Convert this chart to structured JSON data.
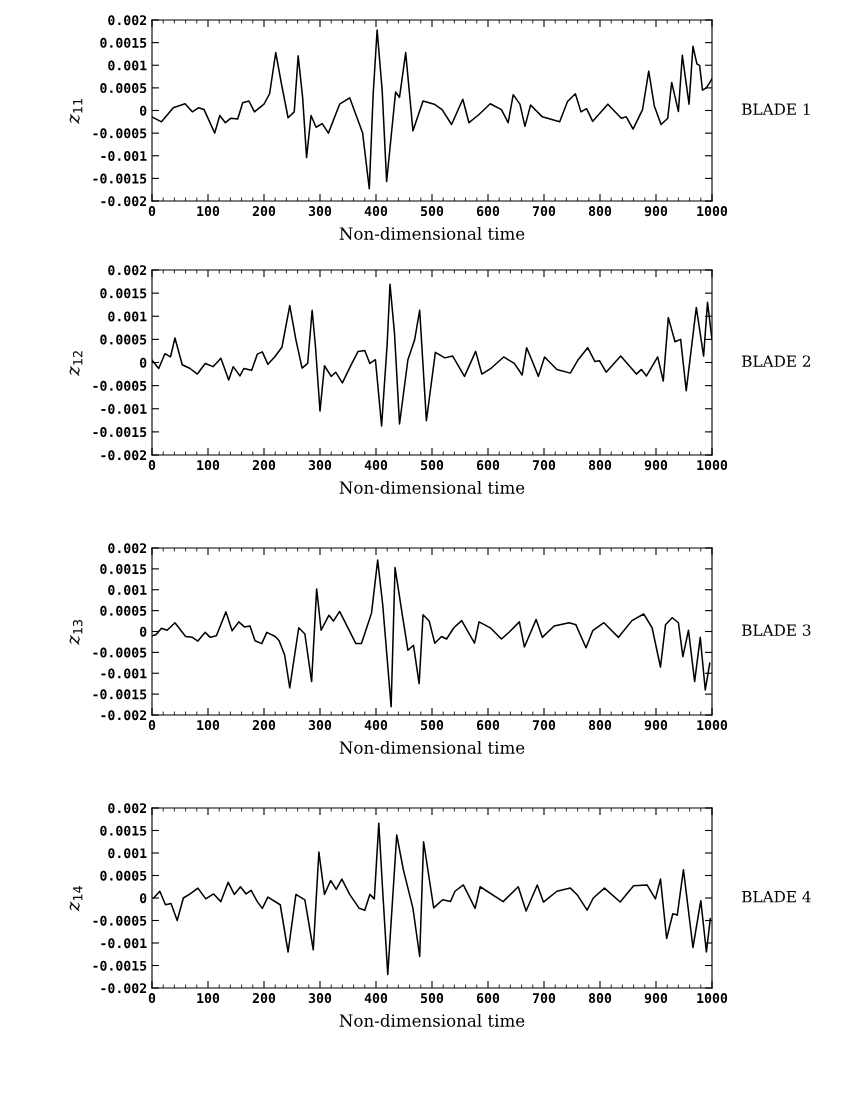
{
  "chart_data": [
    {
      "type": "line",
      "ylabel": "z$_{11}$",
      "xlabel": "Non-dimensional time",
      "annotations": [
        "BLADE 1"
      ],
      "xlim": [
        0,
        1000
      ],
      "ylim": [
        -0.002,
        0.002
      ],
      "xticks": [
        0,
        100,
        200,
        300,
        400,
        500,
        600,
        700,
        800,
        900,
        1000
      ],
      "yticks": [
        -0.002,
        -0.0015,
        -0.001,
        -0.0005,
        0,
        0.0005,
        0.001,
        0.0015,
        0.002
      ],
      "grid": false,
      "marker": "none",
      "line_style": "solid",
      "series": [
        {
          "color": "#000000",
          "x": [
            0,
            17,
            38,
            59,
            72,
            83,
            93,
            112,
            121,
            131,
            141,
            153,
            162,
            173,
            183,
            200,
            210,
            221,
            231,
            243,
            254,
            261,
            269,
            276,
            284,
            293,
            304,
            315,
            335,
            353,
            376,
            388,
            395,
            402,
            411,
            419,
            435,
            442,
            453,
            466,
            484,
            504,
            518,
            535,
            555,
            566,
            583,
            604,
            624,
            636,
            645,
            657,
            666,
            676,
            697,
            728,
            742,
            756,
            766,
            776,
            787,
            814,
            838,
            847,
            859,
            876,
            887,
            897,
            909,
            921,
            928,
            940,
            947,
            959,
            966,
            973,
            978,
            983,
            990,
            1000
          ],
          "values": [
            -0.00014,
            -0.00025,
            6e-05,
            0.00015,
            -3e-05,
            6e-05,
            2e-05,
            -0.0005,
            -0.00011,
            -0.00027,
            -0.00017,
            -0.00019,
            0.00017,
            0.00021,
            -3e-05,
            0.00014,
            0.00037,
            0.00128,
            0.0006,
            -0.00016,
            -3e-05,
            0.00121,
            0.00029,
            -0.00104,
            -0.00011,
            -0.00037,
            -0.00029,
            -0.0005,
            0.00014,
            0.00028,
            -0.00049,
            -0.00173,
            0.00037,
            0.00178,
            0.00045,
            -0.00157,
            0.00041,
            0.00029,
            0.00128,
            -0.00045,
            0.00021,
            0.00014,
            2e-05,
            -0.00031,
            0.00025,
            -0.00027,
            -0.0001,
            0.00015,
            2e-05,
            -0.00027,
            0.00035,
            0.00014,
            -0.00035,
            0.00012,
            -0.00014,
            -0.00025,
            0.0002,
            0.00037,
            -3e-05,
            4e-05,
            -0.00024,
            0.00014,
            -0.00017,
            -0.00014,
            -0.00041,
            2e-05,
            0.00087,
            0.0001,
            -0.00031,
            -0.00017,
            0.00062,
            -2e-05,
            0.00122,
            0.00014,
            0.00142,
            0.00103,
            0.00099,
            0.00045,
            0.0005,
            0.0007
          ]
        }
      ]
    },
    {
      "type": "line",
      "ylabel": "z$_{12}$",
      "xlabel": "Non-dimensional time",
      "annotations": [
        "BLADE 2"
      ],
      "xlim": [
        0,
        1000
      ],
      "ylim": [
        -0.002,
        0.002
      ],
      "xticks": [
        0,
        100,
        200,
        300,
        400,
        500,
        600,
        700,
        800,
        900,
        1000
      ],
      "yticks": [
        -0.002,
        -0.0015,
        -0.001,
        -0.0005,
        0,
        0.0005,
        0.001,
        0.0015,
        0.002
      ],
      "grid": false,
      "marker": "none",
      "line_style": "solid",
      "series": [
        {
          "color": "#000000",
          "x": [
            0,
            12,
            23,
            33,
            41,
            54,
            68,
            81,
            95,
            109,
            123,
            137,
            145,
            157,
            164,
            178,
            188,
            197,
            207,
            219,
            232,
            246,
            257,
            268,
            278,
            286,
            292,
            300,
            308,
            320,
            328,
            340,
            354,
            368,
            380,
            389,
            399,
            410,
            420,
            425,
            433,
            442,
            457,
            469,
            478,
            490,
            506,
            523,
            537,
            558,
            578,
            589,
            606,
            628,
            647,
            661,
            669,
            678,
            690,
            701,
            723,
            747,
            761,
            778,
            791,
            799,
            811,
            837,
            865,
            874,
            883,
            903,
            913,
            922,
            934,
            944,
            954,
            972,
            985,
            992,
            1000
          ],
          "values": [
            5e-05,
            -0.00013,
            0.00019,
            0.00012,
            0.00053,
            -5e-05,
            -0.00013,
            -0.00025,
            -2e-05,
            -9e-05,
            9e-05,
            -0.00038,
            -9e-05,
            -0.00029,
            -0.00013,
            -0.00017,
            0.00018,
            0.00023,
            -4e-05,
            0.00012,
            0.00033,
            0.00123,
            0.00049,
            -0.00012,
            -2e-05,
            0.00113,
            0.00033,
            -0.00105,
            -7e-05,
            -0.0003,
            -0.00021,
            -0.00044,
            -9e-05,
            0.00024,
            0.00026,
            -2e-05,
            6e-05,
            -0.00137,
            0.00041,
            0.00169,
            0.00064,
            -0.00133,
            6e-05,
            0.00049,
            0.00113,
            -0.00126,
            0.00022,
            0.0001,
            0.00014,
            -0.0003,
            0.00024,
            -0.00025,
            -0.00012,
            0.00012,
            -2e-05,
            -0.00027,
            0.00032,
            6e-05,
            -0.0003,
            0.00012,
            -0.00015,
            -0.00023,
            6e-05,
            0.00032,
            2e-05,
            4e-05,
            -0.00021,
            0.00014,
            -0.00025,
            -0.00015,
            -0.00029,
            0.00012,
            -0.0004,
            0.00097,
            0.00045,
            0.0005,
            -0.00061,
            0.00119,
            0.00014,
            0.0013,
            0.0005
          ]
        }
      ]
    },
    {
      "type": "line",
      "ylabel": "z$_{13}$",
      "xlabel": "Non-dimensional time",
      "annotations": [
        "BLADE 3"
      ],
      "xlim": [
        0,
        1000
      ],
      "ylim": [
        -0.002,
        0.002
      ],
      "xticks": [
        0,
        100,
        200,
        300,
        400,
        500,
        600,
        700,
        800,
        900,
        1000
      ],
      "yticks": [
        -0.002,
        -0.0015,
        -0.001,
        -0.0005,
        0,
        0.0005,
        0.001,
        0.0015,
        0.002
      ],
      "grid": false,
      "marker": "none",
      "line_style": "solid",
      "series": [
        {
          "color": "#000000",
          "x": [
            0,
            7,
            17,
            27,
            41,
            60,
            72,
            82,
            95,
            104,
            115,
            132,
            143,
            155,
            165,
            175,
            184,
            196,
            205,
            220,
            227,
            237,
            246,
            262,
            273,
            285,
            294,
            302,
            316,
            324,
            335,
            354,
            364,
            374,
            392,
            403,
            412,
            427,
            434,
            447,
            457,
            467,
            477,
            484,
            495,
            505,
            517,
            526,
            539,
            553,
            576,
            584,
            605,
            624,
            639,
            656,
            665,
            686,
            697,
            718,
            745,
            757,
            775,
            787,
            807,
            833,
            857,
            878,
            893,
            908,
            917,
            929,
            940,
            948,
            958,
            969,
            979,
            988,
            996
          ],
          "values": [
            -0.0001,
            -8e-05,
            8e-05,
            3e-05,
            0.00021,
            -0.00012,
            -0.00014,
            -0.00023,
            -2e-05,
            -0.00014,
            -0.0001,
            0.00047,
            2e-05,
            0.00023,
            0.00011,
            0.00013,
            -0.00022,
            -0.00029,
            -2e-05,
            -0.00012,
            -0.00022,
            -0.00057,
            -0.00135,
            9e-05,
            -6e-05,
            -0.0012,
            0.00102,
            3e-05,
            0.00039,
            0.00025,
            0.00048,
            -2e-05,
            -0.00029,
            -0.00029,
            0.00044,
            0.00171,
            0.00064,
            -0.0018,
            0.00153,
            0.0004,
            -0.00045,
            -0.00033,
            -0.00125,
            0.0004,
            0.00025,
            -0.00028,
            -0.00012,
            -0.00018,
            9e-05,
            0.00026,
            -0.00028,
            0.00023,
            8e-05,
            -0.00018,
            0,
            0.00023,
            -0.00037,
            0.00029,
            -0.00014,
            0.00013,
            0.00021,
            0.00016,
            -0.00039,
            2e-05,
            0.00021,
            -0.00014,
            0.00026,
            0.00042,
            9e-05,
            -0.00085,
            0.00016,
            0.00033,
            0.00021,
            -0.0006,
            3e-05,
            -0.0012,
            -0.00014,
            -0.0014,
            -0.00076
          ]
        }
      ]
    },
    {
      "type": "line",
      "ylabel": "z$_{14}$",
      "xlabel": "Non-dimensional time",
      "annotations": [
        "BLADE 4"
      ],
      "xlim": [
        0,
        1000
      ],
      "ylim": [
        -0.002,
        0.002
      ],
      "xticks": [
        0,
        100,
        200,
        300,
        400,
        500,
        600,
        700,
        800,
        900,
        1000
      ],
      "yticks": [
        -0.002,
        -0.0015,
        -0.001,
        -0.0005,
        0,
        0.0005,
        0.001,
        0.0015,
        0.002
      ],
      "grid": false,
      "marker": "none",
      "line_style": "solid",
      "series": [
        {
          "color": "#000000",
          "x": [
            3,
            14,
            24,
            34,
            45,
            56,
            68,
            82,
            96,
            110,
            123,
            136,
            147,
            158,
            168,
            177,
            188,
            197,
            207,
            229,
            243,
            257,
            273,
            288,
            298,
            308,
            319,
            329,
            339,
            353,
            370,
            380,
            389,
            397,
            405,
            412,
            421,
            437,
            449,
            466,
            478,
            485,
            503,
            519,
            533,
            541,
            556,
            577,
            586,
            627,
            654,
            668,
            688,
            699,
            723,
            747,
            760,
            777,
            788,
            808,
            836,
            860,
            884,
            899,
            908,
            919,
            930,
            938,
            949,
            966,
            980,
            990,
            997
          ],
          "values": [
            0,
            0.00015,
            -0.00015,
            -0.00012,
            -0.0005,
            0,
            9e-05,
            0.00022,
            -2e-05,
            9e-05,
            -8e-05,
            0.00035,
            8e-05,
            0.00025,
            9e-05,
            0.00017,
            -8e-05,
            -0.00023,
            2e-05,
            -0.00015,
            -0.0012,
            8e-05,
            -4e-05,
            -0.00115,
            0.00102,
            8e-05,
            0.00039,
            0.00019,
            0.00042,
            8e-05,
            -0.00023,
            -0.00027,
            8e-05,
            -2e-05,
            0.00166,
            0.00015,
            -0.0017,
            0.0014,
            0.00062,
            -0.00023,
            -0.0013,
            0.00125,
            -0.00022,
            -4e-05,
            -8e-05,
            0.00015,
            0.00029,
            -0.00023,
            0.00025,
            -8e-05,
            0.00025,
            -0.00029,
            0.00029,
            -9e-05,
            0.00015,
            0.00022,
            6e-05,
            -0.00027,
            0,
            0.00022,
            -9e-05,
            0.00027,
            0.00029,
            -2e-05,
            0.00042,
            -0.0009,
            -0.00035,
            -0.00038,
            0.00063,
            -0.0011,
            -6e-05,
            -0.0012,
            -0.00046
          ]
        }
      ]
    }
  ]
}
